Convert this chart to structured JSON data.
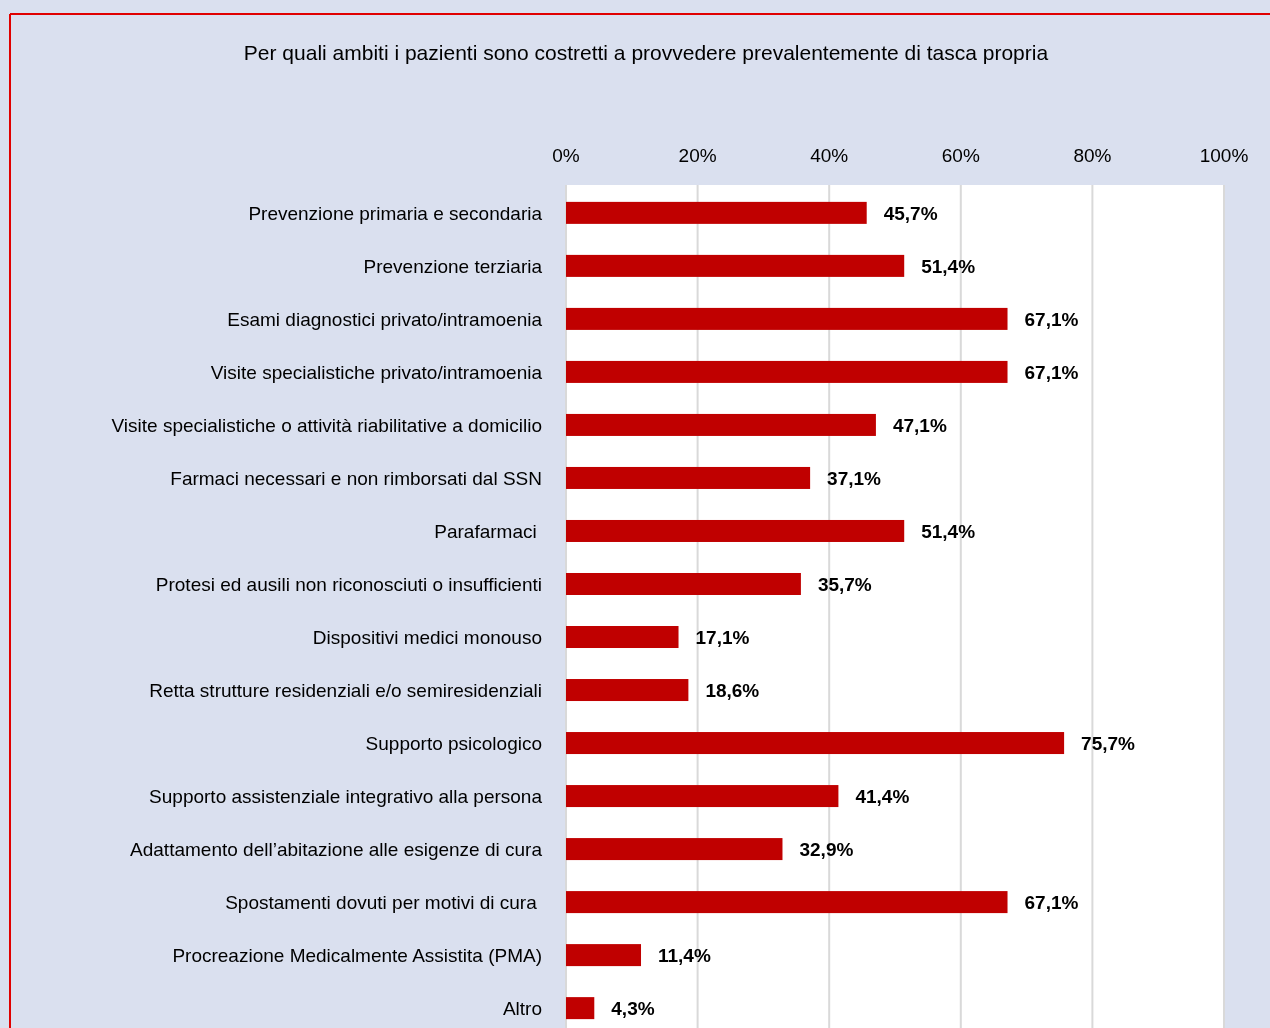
{
  "chart_data": {
    "type": "bar",
    "orientation": "horizontal",
    "title": "Per quali ambiti i pazienti sono costretti a provvedere prevalentemente di tasca propria",
    "categories": [
      "Prevenzione primaria e secondaria",
      "Prevenzione terziaria",
      "Esami diagnostici privato/intramoenia",
      "Visite specialistiche privato/intramoenia",
      "Visite specialistiche o attività riabilitative a domicilio",
      "Farmaci necessari e non rimborsati dal SSN",
      "Parafarmaci ",
      "Protesi ed ausili non riconosciuti o insufficienti",
      "Dispositivi medici monouso",
      "Retta strutture residenziali e/o semiresidenziali",
      "Supporto psicologico",
      "Supporto assistenziale integrativo alla persona",
      "Adattamento dell’abitazione alle esigenze di cura",
      "Spostamenti dovuti per motivi di cura ",
      "Procreazione Medicalmente Assistita (PMA)",
      "Altro"
    ],
    "values": [
      45.7,
      51.4,
      67.1,
      67.1,
      47.1,
      37.1,
      51.4,
      35.7,
      17.1,
      18.6,
      75.7,
      41.4,
      32.9,
      67.1,
      11.4,
      4.3
    ],
    "value_labels": [
      "45,7%",
      "51,4%",
      "67,1%",
      "67,1%",
      "47,1%",
      "37,1%",
      "51,4%",
      "35,7%",
      "17,1%",
      "18,6%",
      "75,7%",
      "41,4%",
      "32,9%",
      "67,1%",
      "11,4%",
      "4,3%"
    ],
    "color": "#c00000",
    "xlim": [
      0,
      100
    ],
    "xticks": [
      {
        "value": 0,
        "label": "0%"
      },
      {
        "value": 20,
        "label": "20%"
      },
      {
        "value": 40,
        "label": "40%"
      },
      {
        "value": 60,
        "label": "60%"
      },
      {
        "value": 80,
        "label": "80%"
      },
      {
        "value": 100,
        "label": "100%"
      }
    ],
    "grid": "x"
  }
}
